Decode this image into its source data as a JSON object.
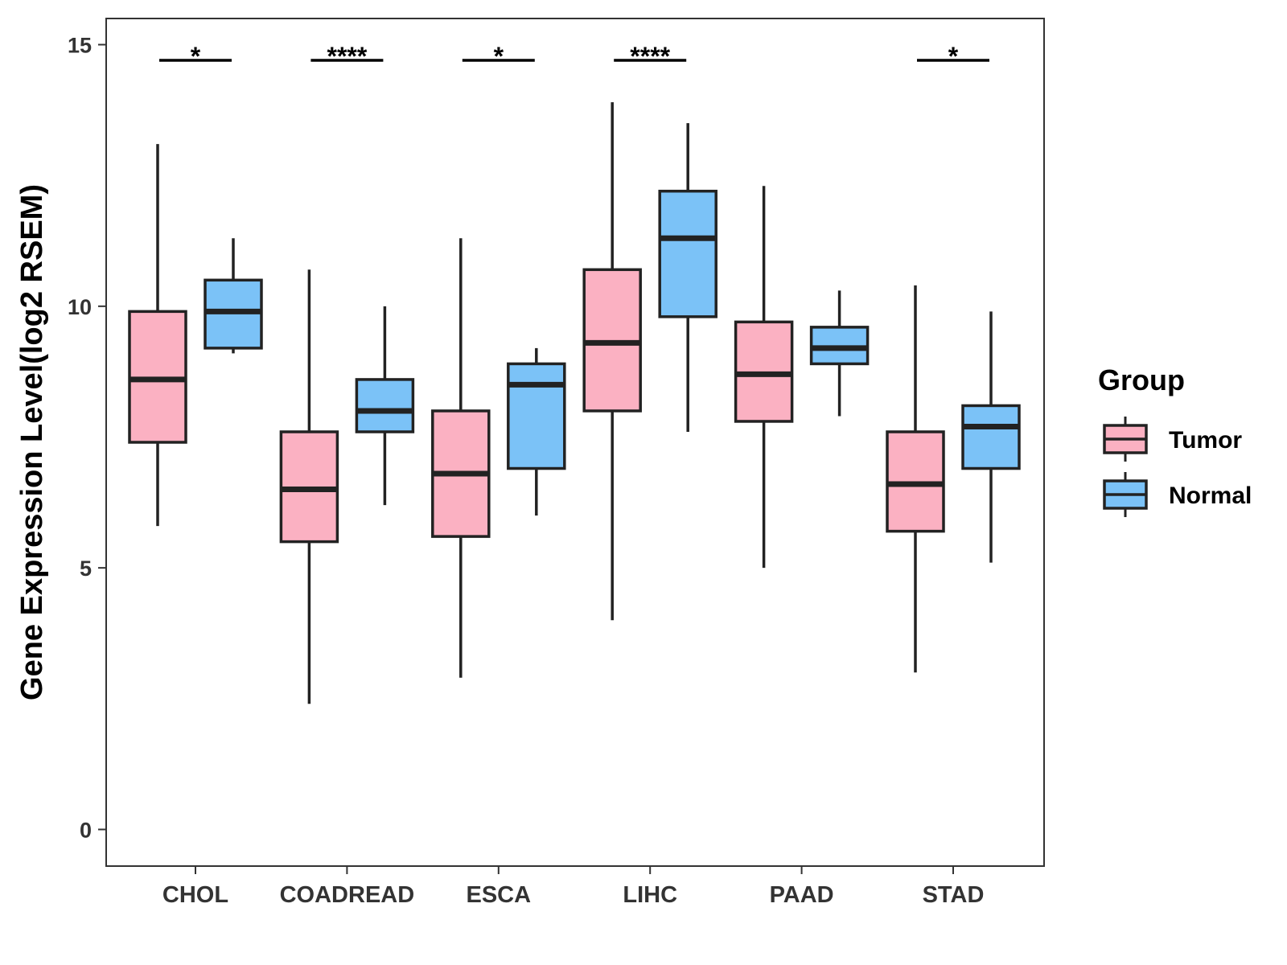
{
  "chart_data": {
    "type": "boxplot",
    "title": "",
    "xlabel": "",
    "ylabel": "Gene Expression Level(log2 RSEM)",
    "ylim": [
      -0.7,
      15.5
    ],
    "yticks": [
      0,
      5,
      10,
      15
    ],
    "categories": [
      "CHOL",
      "COADREAD",
      "ESCA",
      "LIHC",
      "PAAD",
      "STAD"
    ],
    "legend": {
      "title": "Group",
      "position": "right",
      "entries": [
        {
          "name": "Tumor",
          "color": "#FBB1C2"
        },
        {
          "name": "Normal",
          "color": "#7BC2F7"
        }
      ]
    },
    "series": [
      {
        "name": "Tumor",
        "color": "#FBB1C2",
        "boxes": [
          {
            "min": 5.8,
            "q1": 7.4,
            "median": 8.6,
            "q3": 9.9,
            "max": 13.1
          },
          {
            "min": 2.4,
            "q1": 5.5,
            "median": 6.5,
            "q3": 7.6,
            "max": 10.7
          },
          {
            "min": 2.9,
            "q1": 5.6,
            "median": 6.8,
            "q3": 8.0,
            "max": 11.3
          },
          {
            "min": 4.0,
            "q1": 8.0,
            "median": 9.3,
            "q3": 10.7,
            "max": 13.9
          },
          {
            "min": 5.0,
            "q1": 7.8,
            "median": 8.7,
            "q3": 9.7,
            "max": 12.3
          },
          {
            "min": 3.0,
            "q1": 5.7,
            "median": 6.6,
            "q3": 7.6,
            "max": 10.4
          }
        ]
      },
      {
        "name": "Normal",
        "color": "#7BC2F7",
        "boxes": [
          {
            "min": 9.1,
            "q1": 9.2,
            "median": 9.9,
            "q3": 10.5,
            "max": 11.3
          },
          {
            "min": 6.2,
            "q1": 7.6,
            "median": 8.0,
            "q3": 8.6,
            "max": 10.0
          },
          {
            "min": 6.0,
            "q1": 6.9,
            "median": 8.5,
            "q3": 8.9,
            "max": 9.2
          },
          {
            "min": 7.6,
            "q1": 9.8,
            "median": 11.3,
            "q3": 12.2,
            "max": 13.5
          },
          {
            "min": 7.9,
            "q1": 8.9,
            "median": 9.2,
            "q3": 9.6,
            "max": 10.3
          },
          {
            "min": 5.1,
            "q1": 6.9,
            "median": 7.7,
            "q3": 8.1,
            "max": 9.9
          }
        ]
      }
    ],
    "significance": [
      "*",
      "****",
      "*",
      "****",
      "",
      "*"
    ],
    "significance_y": 14.7
  }
}
